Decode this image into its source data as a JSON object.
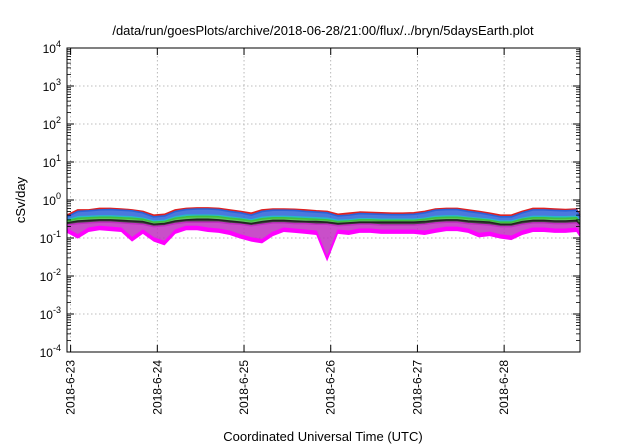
{
  "chart_data": {
    "type": "area",
    "title": "/data/run/goesPlots/archive/2018-06-28/21:00/flux/../bryn/5daysEarth.plot",
    "xlabel": "Coordinated Universal Time (UTC)",
    "ylabel": "cSv/day",
    "y_scale": "log",
    "ylim": [
      0.0001,
      10000
    ],
    "y_ticks": [
      {
        "base": "10",
        "exp": "-4",
        "value": 0.0001
      },
      {
        "base": "10",
        "exp": "-3",
        "value": 0.001
      },
      {
        "base": "10",
        "exp": "-2",
        "value": 0.01
      },
      {
        "base": "10",
        "exp": "-1",
        "value": 0.1
      },
      {
        "base": "10",
        "exp": "0",
        "value": 1
      },
      {
        "base": "10",
        "exp": "1",
        "value": 10
      },
      {
        "base": "10",
        "exp": "2",
        "value": 100
      },
      {
        "base": "10",
        "exp": "3",
        "value": 1000
      },
      {
        "base": "10",
        "exp": "4",
        "value": 10000
      }
    ],
    "xlim": [
      "2018-06-22 23:00",
      "2018-06-28 21:00"
    ],
    "x_ticks": [
      "2018-6-23",
      "2018-6-24",
      "2018-6-25",
      "2018-6-26",
      "2018-6-27",
      "2018-6-28"
    ],
    "x_tick_dates": [
      "2018-06-23",
      "2018-06-24",
      "2018-06-25",
      "2018-06-26",
      "2018-06-27",
      "2018-06-28"
    ],
    "grid": true,
    "legend": "none",
    "x": [
      "06-22 23:00",
      "06-23 02:00",
      "06-23 05:00",
      "06-23 08:00",
      "06-23 11:00",
      "06-23 14:00",
      "06-23 17:00",
      "06-23 20:00",
      "06-23 23:00",
      "06-24 02:00",
      "06-24 05:00",
      "06-24 08:00",
      "06-24 11:00",
      "06-24 14:00",
      "06-24 17:00",
      "06-24 20:00",
      "06-24 23:00",
      "06-25 02:00",
      "06-25 05:00",
      "06-25 08:00",
      "06-25 11:00",
      "06-25 14:00",
      "06-25 17:00",
      "06-25 20:00",
      "06-25 23:00",
      "06-26 02:00",
      "06-26 05:00",
      "06-26 08:00",
      "06-26 11:00",
      "06-26 14:00",
      "06-26 17:00",
      "06-26 20:00",
      "06-26 23:00",
      "06-27 02:00",
      "06-27 05:00",
      "06-27 08:00",
      "06-27 11:00",
      "06-27 14:00",
      "06-27 17:00",
      "06-27 20:00",
      "06-27 23:00",
      "06-28 02:00",
      "06-28 05:00",
      "06-28 08:00",
      "06-28 11:00",
      "06-28 14:00",
      "06-28 17:00",
      "06-28 20:00",
      "06-28 21:00"
    ],
    "series": [
      {
        "color": "#dd2020",
        "values": [
          0.4,
          0.55,
          0.55,
          0.6,
          0.6,
          0.58,
          0.55,
          0.5,
          0.4,
          0.42,
          0.55,
          0.6,
          0.62,
          0.62,
          0.6,
          0.55,
          0.5,
          0.45,
          0.55,
          0.58,
          0.58,
          0.57,
          0.55,
          0.52,
          0.5,
          0.42,
          0.45,
          0.48,
          0.47,
          0.46,
          0.45,
          0.45,
          0.46,
          0.5,
          0.58,
          0.6,
          0.6,
          0.55,
          0.5,
          0.45,
          0.4,
          0.4,
          0.5,
          0.6,
          0.6,
          0.58,
          0.56,
          0.58,
          0.4
        ]
      },
      {
        "color": "#2a62d8",
        "values": [
          0.36,
          0.5,
          0.52,
          0.55,
          0.56,
          0.54,
          0.52,
          0.46,
          0.36,
          0.38,
          0.5,
          0.56,
          0.58,
          0.58,
          0.56,
          0.5,
          0.46,
          0.4,
          0.5,
          0.54,
          0.54,
          0.53,
          0.5,
          0.48,
          0.46,
          0.38,
          0.4,
          0.44,
          0.43,
          0.42,
          0.41,
          0.41,
          0.42,
          0.46,
          0.54,
          0.56,
          0.56,
          0.5,
          0.46,
          0.41,
          0.36,
          0.36,
          0.46,
          0.55,
          0.55,
          0.53,
          0.52,
          0.54,
          0.36
        ]
      },
      {
        "color": "#26b9c8",
        "values": [
          0.3,
          0.36,
          0.37,
          0.38,
          0.38,
          0.37,
          0.36,
          0.33,
          0.28,
          0.29,
          0.36,
          0.4,
          0.4,
          0.4,
          0.39,
          0.36,
          0.33,
          0.3,
          0.35,
          0.37,
          0.37,
          0.36,
          0.35,
          0.34,
          0.33,
          0.29,
          0.3,
          0.32,
          0.32,
          0.31,
          0.31,
          0.31,
          0.31,
          0.33,
          0.37,
          0.38,
          0.38,
          0.35,
          0.33,
          0.31,
          0.28,
          0.28,
          0.33,
          0.37,
          0.37,
          0.36,
          0.36,
          0.37,
          0.28
        ]
      },
      {
        "color": "#3fbf3f",
        "values": [
          0.28,
          0.33,
          0.34,
          0.35,
          0.35,
          0.34,
          0.33,
          0.31,
          0.26,
          0.27,
          0.33,
          0.36,
          0.37,
          0.37,
          0.36,
          0.33,
          0.31,
          0.28,
          0.32,
          0.34,
          0.34,
          0.33,
          0.32,
          0.31,
          0.3,
          0.27,
          0.28,
          0.3,
          0.3,
          0.29,
          0.29,
          0.29,
          0.29,
          0.31,
          0.34,
          0.35,
          0.35,
          0.33,
          0.31,
          0.29,
          0.26,
          0.26,
          0.31,
          0.34,
          0.34,
          0.33,
          0.33,
          0.34,
          0.26
        ]
      },
      {
        "color": "#222222",
        "values": [
          0.25,
          0.28,
          0.29,
          0.3,
          0.3,
          0.29,
          0.28,
          0.27,
          0.23,
          0.24,
          0.28,
          0.3,
          0.31,
          0.31,
          0.3,
          0.28,
          0.26,
          0.24,
          0.27,
          0.29,
          0.29,
          0.28,
          0.27,
          0.27,
          0.26,
          0.24,
          0.25,
          0.26,
          0.26,
          0.26,
          0.26,
          0.26,
          0.26,
          0.27,
          0.29,
          0.3,
          0.3,
          0.28,
          0.27,
          0.26,
          0.23,
          0.23,
          0.27,
          0.29,
          0.29,
          0.28,
          0.28,
          0.29,
          0.23
        ]
      },
      {
        "color": "#c030c0",
        "values": [
          0.22,
          0.24,
          0.25,
          0.26,
          0.26,
          0.25,
          0.24,
          0.23,
          0.2,
          0.21,
          0.24,
          0.26,
          0.26,
          0.26,
          0.26,
          0.24,
          0.23,
          0.21,
          0.23,
          0.25,
          0.25,
          0.24,
          0.24,
          0.23,
          0.23,
          0.21,
          0.22,
          0.23,
          0.23,
          0.22,
          0.22,
          0.22,
          0.22,
          0.23,
          0.25,
          0.26,
          0.26,
          0.24,
          0.23,
          0.22,
          0.2,
          0.2,
          0.23,
          0.25,
          0.25,
          0.24,
          0.24,
          0.25,
          0.2
        ]
      },
      {
        "color": "#ff00ff",
        "values": [
          0.17,
          0.12,
          0.18,
          0.2,
          0.19,
          0.18,
          0.1,
          0.16,
          0.1,
          0.08,
          0.16,
          0.2,
          0.2,
          0.18,
          0.17,
          0.15,
          0.12,
          0.1,
          0.09,
          0.14,
          0.18,
          0.17,
          0.16,
          0.15,
          0.03,
          0.16,
          0.15,
          0.17,
          0.17,
          0.16,
          0.16,
          0.16,
          0.16,
          0.15,
          0.17,
          0.19,
          0.19,
          0.17,
          0.13,
          0.14,
          0.12,
          0.11,
          0.15,
          0.18,
          0.18,
          0.17,
          0.17,
          0.18,
          0.13
        ]
      }
    ]
  }
}
